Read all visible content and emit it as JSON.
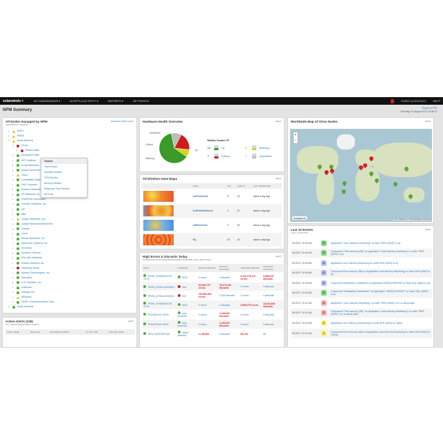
{
  "nav": {
    "logo": "solarwinds",
    "items": [
      "My Dashboards ▾",
      "Alerts & Activity ▾",
      "Reports ▾",
      "Settings ▾"
    ],
    "user": "GUEST (LOCKOUT)",
    "help": "HELP"
  },
  "page": {
    "title": "NPM Summary",
    "export": "Export to PDF",
    "date": "Tuesday, 01 August 2017 10:46:27"
  },
  "nodes": {
    "title": "All Nodes managed by NPM",
    "subtitle": "Grouped by region",
    "actions": "MANAGE NODES  HELP",
    "items": [
      {
        "label": "APAC",
        "status": "warning",
        "level": 0
      },
      {
        "label": "EMEA",
        "status": "warning",
        "level": 0
      },
      {
        "label": "North America",
        "status": "warning",
        "level": 0,
        "open": true
      },
      {
        "label": "3Com",
        "status": "critical",
        "level": 1,
        "open": true
      },
      {
        "label": "Switch-sales",
        "status": "critical",
        "level": 2
      },
      {
        "label": "American Power",
        "status": "up",
        "level": 1
      },
      {
        "label": "APC NetBotz",
        "status": "up",
        "level": 1
      },
      {
        "label": "Aruba Networks",
        "status": "up",
        "level": 1
      },
      {
        "label": "Avaya Communication",
        "status": "up",
        "level": 1
      },
      {
        "label": "Cisco",
        "status": "warning",
        "level": 1
      },
      {
        "label": "Compatible Systems",
        "status": "up",
        "level": 1
      },
      {
        "label": "Dell Computer",
        "status": "up",
        "level": 1
      },
      {
        "label": "Extreme Networks",
        "status": "up",
        "level": 1
      },
      {
        "label": "F5 Networks, Inc.",
        "status": "up",
        "level": 1
      },
      {
        "label": "FlowPoint Corporation",
        "status": "up",
        "level": 1
      },
      {
        "label": "Foundry Networks, Inc.",
        "status": "up",
        "level": 1
      },
      {
        "label": "HP",
        "status": "up",
        "level": 1
      },
      {
        "label": "IBM",
        "status": "up",
        "level": 1
      },
      {
        "label": "Juniper Networks, Inc.",
        "status": "warning",
        "level": 1
      },
      {
        "label": "Juniper Networks/NetScreen",
        "status": "up",
        "level": 1
      },
      {
        "label": "Linksys",
        "status": "up",
        "level": 1
      },
      {
        "label": "Linux",
        "status": "up",
        "level": 1
      },
      {
        "label": "Meraki Networks, Inc.",
        "status": "up",
        "level": 1
      },
      {
        "label": "Multi-Tech Systems, Inc.",
        "status": "up",
        "level": 1
      },
      {
        "label": "net-snmp",
        "status": "up",
        "level": 1
      },
      {
        "label": "Northern Telecom",
        "status": "up",
        "level": 1
      },
      {
        "label": "Palo Alto Networks",
        "status": "up",
        "level": 1
      },
      {
        "label": "Ruckus Wireless Inc",
        "status": "up",
        "level": 1
      },
      {
        "label": "Samsung Group",
        "status": "critical",
        "level": 1
      },
      {
        "label": "Symbol Technologies, Inc.",
        "status": "up",
        "level": 1
      },
      {
        "label": "Synoptics",
        "status": "up",
        "level": 1
      },
      {
        "label": "U.S. Robotics, Inc.",
        "status": "up",
        "level": 1
      },
      {
        "label": "Unknown",
        "status": "up",
        "level": 1
      },
      {
        "label": "VMware Inc.",
        "status": "up",
        "level": 1
      },
      {
        "label": "Windows",
        "status": "warning",
        "level": 1
      },
      {
        "label": "ZyXEL Communications Corp.",
        "status": "up",
        "level": 1
      },
      {
        "label": "South America",
        "status": "up",
        "level": 0
      }
    ],
    "toolset": {
      "title": "Toolset",
      "items": [
        "Trace Route",
        "Interface Monitor",
        "CPU Monitor",
        "Memory Monitor",
        "Response Time Monitor",
        "All Tools"
      ]
    }
  },
  "alerts": {
    "title": "Active Alerts (136)",
    "subtitle": "All unacknowledged alerts",
    "help": "HELP",
    "columns": [
      "Alert Name",
      "Message",
      "Triggering Object",
      "Active Time",
      "Related Node"
    ]
  },
  "hardware": {
    "title": "Hardware Health Overview",
    "help": "HELP",
    "count_label": "Nodes Count: 37",
    "legend": [
      {
        "label": "Up",
        "count": "23",
        "value": 23,
        "color": "#3a9a2a"
      },
      {
        "label": "Warning",
        "count": "3",
        "value": 3,
        "color": "#d8d21a"
      },
      {
        "label": "Critical",
        "count": "7",
        "value": 7,
        "color": "#cf1b1b"
      },
      {
        "label": "Undefined",
        "count": "4",
        "value": 4,
        "color": "#bdbdbd"
      }
    ]
  },
  "wireless": {
    "title": "All Wireless Heat Maps",
    "help": "HELP",
    "columns": [
      "",
      "Name",
      "APs",
      "Clients",
      "Last Generated"
    ],
    "rows": [
      {
        "name": "1stFloorGood",
        "aps": "5",
        "clients": "23",
        "last": "about a day ago"
      },
      {
        "name": "2ndFloorMediocre",
        "aps": "4",
        "clients": "21",
        "last": "about a day ago"
      },
      {
        "name": "3rdFloorPoor",
        "aps": "3",
        "clients": "20",
        "last": "about a day ago"
      },
      {
        "name": "HQ",
        "aps": "15",
        "clients": "42",
        "last": "about a day ago"
      }
    ]
  },
  "errors": {
    "title": "High Errors & Discards Today",
    "subtitle": "Interfaces with errors/discards greater than 1000 today",
    "help": "HELP",
    "columns": [
      "Node",
      "Interface",
      "Receive Errors",
      "Receive Discards",
      "Transmit Errors",
      "Transmit Discards"
    ],
    "rows": [
      {
        "node": "PERN_TEHABOSY.25-76.76",
        "iface": "N/15",
        "re": "0 errors",
        "rd": "0 discards",
        "te": "5,302,775,112 errors",
        "td": "5,808,010 discards"
      },
      {
        "node": "PERN_AP0511-BXCBD3",
        "iface": "Ne1",
        "re": "64,090,775 errors",
        "rd": "78,073,344 discards",
        "te": "0 errors",
        "td": "0 discards"
      },
      {
        "node": "PERN_AP0511-BXCBD3",
        "iface": "Ni2",
        "re": "100,561,402 errors",
        "rd": "2,540 discards",
        "te": "0 errors",
        "td": "0 discards"
      },
      {
        "node": "PERN_TEHABOSY.25-76.76",
        "iface": "N/16",
        "re": "0 errors",
        "rd": "0 discards",
        "te": "5,808,775 errors",
        "td": "10,024,548 discards"
      },
      {
        "node": "PHILNEXUS 1000V",
        "iface": "port-channel1",
        "re": "0 errors",
        "rd": "1,246,402 discards",
        "te": "0 errors",
        "td": "0 discards"
      },
      {
        "node": "PHILNEXUS 1000V",
        "iface": "port-channel2",
        "re": "0 errors",
        "rd": "1,246,400 discards",
        "te": "0 errors",
        "td": "0 discards"
      },
      {
        "node": "NPM_3GDCDP0109",
        "iface": "wlan0 · Wireless",
        "re": "1,148,003",
        "rd": "0 discards",
        "te": "89,129",
        "td": "89"
      }
    ]
  },
  "map": {
    "title": "Worldwide Map of Orion Nodes",
    "help": "HELP",
    "zoom_in": "+",
    "zoom_out": "−",
    "attribution": "© 2017 MapQuest © OpenStreetMap contributors",
    "brand": "mapquest"
  },
  "events": {
    "title": "Last 10 Events",
    "subtitle": "Last 12 months",
    "help": "HELP",
    "rows": [
      {
        "time": "8/1/2017 10:36 AM",
        "type": "up",
        "text": "Application \"Linux Memory Monitoring\" on node \"WHS (AWS)\" is up"
      },
      {
        "time": "8/1/2017 10:36 AM",
        "type": "up",
        "text": "Component \"Free memory (KB)\" for application \"Linux Memory Monitoring\" on node \"WHS (AWS)\" is up"
      },
      {
        "time": "8/1/2017 10:35 AM",
        "type": "info",
        "text": "Application Linux Memory Monitoring on Node WHS (AWS) is Up"
      },
      {
        "time": "8/1/2017 10:35 AM",
        "type": "info",
        "text": "Component Free memory (KB) on Application Linux Memory Monitoring on Node WHS (AWS) is Up"
      },
      {
        "time": "8/1/2017 10:35 AM",
        "type": "info",
        "text": "Component Worktables Created/sec on Application MSSQLSERVER on Node SQL (AWS) is Up"
      },
      {
        "time": "8/1/2017 10:35 AM",
        "type": "up",
        "text": "Component \"Worktables Created/sec\" for application \"MSSQLSERVER\" on node \"SQL (AWS)\" is up"
      },
      {
        "time": "8/1/2017 10:31 AM",
        "type": "critical",
        "text": "Application \"Linux Memory Monitoring\" on node \"WHS (AWS)\" is in a critical state"
      },
      {
        "time": "8/1/2017 10:31 AM",
        "type": "critical",
        "text": "Component \"Free memory (KB)\" for application \"Linux Memory Monitoring\" on node \"WHS (AWS)\" is in a critical state"
      },
      {
        "time": "8/1/2017 10:30 AM",
        "type": "warning",
        "text": "Application Linux Memory Monitoring on Node WHS (AWS) is Critical"
      },
      {
        "time": "8/1/2017 10:30 AM",
        "type": "warning",
        "text": "Component Free memory (KB) on Application Linux Memory Monitoring on Node WHS (AWS) is Critical"
      }
    ]
  }
}
